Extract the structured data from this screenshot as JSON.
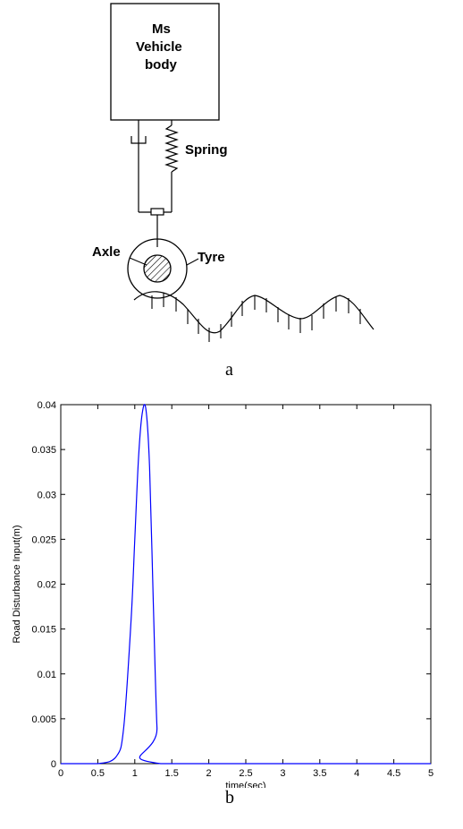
{
  "diagram": {
    "body_label_line1": "Ms",
    "body_label_line2": "Vehicle",
    "body_label_line3": "body",
    "spring_label": "Spring",
    "axle_label": "Axle",
    "tyre_label": "Tyre",
    "panel_label": "a"
  },
  "chart_data": {
    "type": "line",
    "title": "",
    "xlabel": "time(sec)",
    "ylabel": "Road Disturbance Input(m)",
    "xlim": [
      0,
      5
    ],
    "ylim": [
      0,
      0.04
    ],
    "xticks": [
      "0",
      "0.5",
      "1",
      "1.5",
      "2",
      "2.5",
      "3",
      "3.5",
      "4",
      "4.5",
      "5"
    ],
    "yticks": [
      "0",
      "0.005",
      "0.01",
      "0.015",
      "0.02",
      "0.025",
      "0.03",
      "0.035",
      "0.04"
    ],
    "grid": false,
    "line_color": "#0000ff",
    "series": [
      {
        "x": [
          0,
          0.5,
          0.75,
          0.85,
          0.95,
          1.0,
          1.05,
          1.1,
          1.15,
          1.2,
          1.25,
          1.3,
          1.35,
          5
        ],
        "y": [
          0,
          0,
          0.0008,
          0.004,
          0.016,
          0.025,
          0.034,
          0.039,
          0.0395,
          0.033,
          0.018,
          0.004,
          0,
          0
        ]
      }
    ],
    "panel_label": "b"
  }
}
